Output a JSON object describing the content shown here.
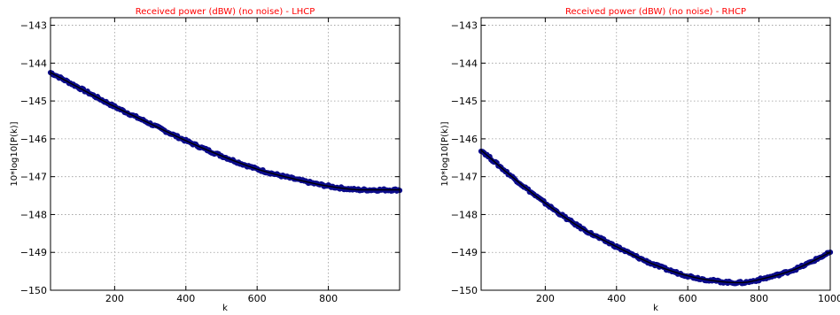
{
  "chart_data": [
    {
      "type": "scatter",
      "title": "Received power (dBW) (no noise) -  LHCP",
      "xlabel": "k",
      "ylabel": "10*log10[P(k)]",
      "xlim": [
        20,
        1000
      ],
      "ylim": [
        -150,
        -142.8
      ],
      "xticks": [
        200,
        400,
        600,
        800
      ],
      "xtick_labels": [
        "200",
        "400",
        "600",
        "800"
      ],
      "yticks": [
        -143,
        -144,
        -145,
        -146,
        -147,
        -148,
        -149,
        -150
      ],
      "ytick_labels": [
        "−143",
        "−144",
        "−145",
        "−146",
        "−147",
        "−148",
        "−149",
        "−150"
      ],
      "grid": true,
      "colors": {
        "marker": "#0b0b8a",
        "line": "#000000"
      },
      "series": [
        {
          "x": [
            20,
            100,
            200,
            300,
            400,
            500,
            600,
            700,
            800,
            900,
            1000
          ],
          "values": [
            -144.25,
            -144.65,
            -145.15,
            -145.6,
            -146.05,
            -146.45,
            -146.8,
            -147.05,
            -147.25,
            -147.35,
            -147.35
          ]
        }
      ]
    },
    {
      "type": "scatter",
      "title": "Received power (dBW) (no noise) -  RHCP",
      "xlabel": "k",
      "ylabel": "10*log10[P(k)]",
      "xlim": [
        20,
        1000
      ],
      "ylim": [
        -150,
        -142.8
      ],
      "xticks": [
        200,
        400,
        600,
        800,
        1000
      ],
      "xtick_labels": [
        "200",
        "400",
        "600",
        "800",
        "1000"
      ],
      "yticks": [
        -143,
        -144,
        -145,
        -146,
        -147,
        -148,
        -149,
        -150
      ],
      "ytick_labels": [
        "−143",
        "−144",
        "−145",
        "−146",
        "−147",
        "−148",
        "−149",
        "−150"
      ],
      "grid": true,
      "colors": {
        "marker": "#0b0b8a",
        "line": "#000000"
      },
      "series": [
        {
          "x": [
            20,
            100,
            200,
            300,
            400,
            500,
            600,
            700,
            750,
            800,
            900,
            1000
          ],
          "values": [
            -146.3,
            -146.95,
            -147.7,
            -148.35,
            -148.85,
            -149.3,
            -149.62,
            -149.78,
            -149.8,
            -149.72,
            -149.45,
            -149.0
          ]
        }
      ]
    }
  ]
}
